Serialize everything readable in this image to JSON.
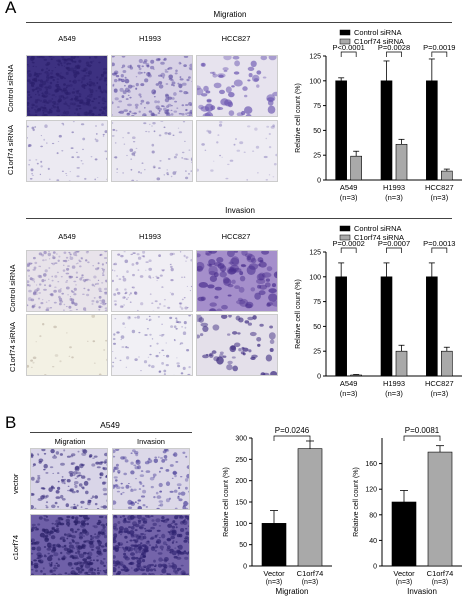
{
  "panel_a": {
    "letter": "A",
    "migration": {
      "title": "Migration",
      "columns": [
        "A549",
        "H1993",
        "HCC827"
      ],
      "rows": [
        "Control siRNA",
        "C1orf74 siRNA"
      ]
    },
    "invasion": {
      "title": "Invasion",
      "columns": [
        "A549",
        "H1993",
        "HCC827"
      ],
      "rows": [
        "Control siRNA",
        "C1orf74 siRNA"
      ]
    }
  },
  "panel_b": {
    "letter": "B",
    "cell_line": "A549",
    "columns": [
      "Migration",
      "Invasion"
    ],
    "rows": [
      "vector",
      "c1orf74"
    ]
  },
  "colors": {
    "control": "#000000",
    "knockdown": "#a9a9a9",
    "vector": "#000000",
    "c1orf74": "#a9a9a9",
    "stain_dark": "#4a3d86",
    "stain_light": "#b9b2d6"
  },
  "chart_data": [
    {
      "id": "migration_knockdown",
      "type": "bar",
      "ylabel": "Relative cell count (%)",
      "ylim": [
        0,
        125
      ],
      "yticks": [
        0,
        25,
        50,
        75,
        100,
        125
      ],
      "categories": [
        "A549\n(n=3)",
        "H1993\n(n=3)",
        "HCC827\n(n=3)"
      ],
      "category_names": [
        "A549",
        "H1993",
        "HCC827"
      ],
      "category_n": [
        "(n=3)",
        "(n=3)",
        "(n=3)"
      ],
      "legend": [
        "Control siRNA",
        "C1orf74 siRNA"
      ],
      "legend_placement": "top-right",
      "series": [
        {
          "name": "Control siRNA",
          "values": [
            100,
            100,
            100
          ],
          "errors": [
            3,
            20,
            22
          ]
        },
        {
          "name": "C1orf74 siRNA",
          "values": [
            24,
            36,
            9
          ],
          "errors": [
            5,
            5,
            2
          ]
        }
      ],
      "annotations": [
        "P<0.0001",
        "P=0.0028",
        "P=0.0019"
      ]
    },
    {
      "id": "invasion_knockdown",
      "type": "bar",
      "ylabel": "Relative cell count (%)",
      "ylim": [
        0,
        125
      ],
      "yticks": [
        0,
        25,
        50,
        75,
        100,
        125
      ],
      "category_names": [
        "A549",
        "H1993",
        "HCC827"
      ],
      "category_n": [
        "(n=3)",
        "(n=3)",
        "(n=3)"
      ],
      "legend": [
        "Control siRNA",
        "C1orf74 siRNA"
      ],
      "legend_placement": "top-right",
      "series": [
        {
          "name": "Control siRNA",
          "values": [
            100,
            100,
            100
          ],
          "errors": [
            14,
            14,
            14
          ]
        },
        {
          "name": "C1orf74 siRNA",
          "values": [
            1,
            25,
            25
          ],
          "errors": [
            0.5,
            6,
            4
          ]
        }
      ],
      "annotations": [
        "P=0.0002",
        "P=0.0007",
        "P=0.0013"
      ]
    },
    {
      "id": "migration_overexpression",
      "type": "bar",
      "ylabel": "Relative cell count (%)",
      "xlabel": "Migration",
      "ylim": [
        0,
        300
      ],
      "yticks": [
        0,
        50,
        100,
        150,
        200,
        250,
        300
      ],
      "category_names": [
        "Vector",
        "C1orf74"
      ],
      "category_n": [
        "(n=3)",
        "(n=3)"
      ],
      "values": [
        100,
        275
      ],
      "errors": [
        30,
        18
      ],
      "annotation": "P=0.0246"
    },
    {
      "id": "invasion_overexpression",
      "type": "bar",
      "ylabel": "Relative cell count (%)",
      "xlabel": "Invasion",
      "ylim": [
        0,
        200
      ],
      "yticks": [
        0,
        40,
        80,
        120,
        160
      ],
      "category_names": [
        "Vector",
        "C1orf74"
      ],
      "category_n": [
        "(n=3)",
        "(n=3)"
      ],
      "values": [
        100,
        178
      ],
      "errors": [
        18,
        10
      ],
      "annotation": "P=0.0081"
    }
  ]
}
